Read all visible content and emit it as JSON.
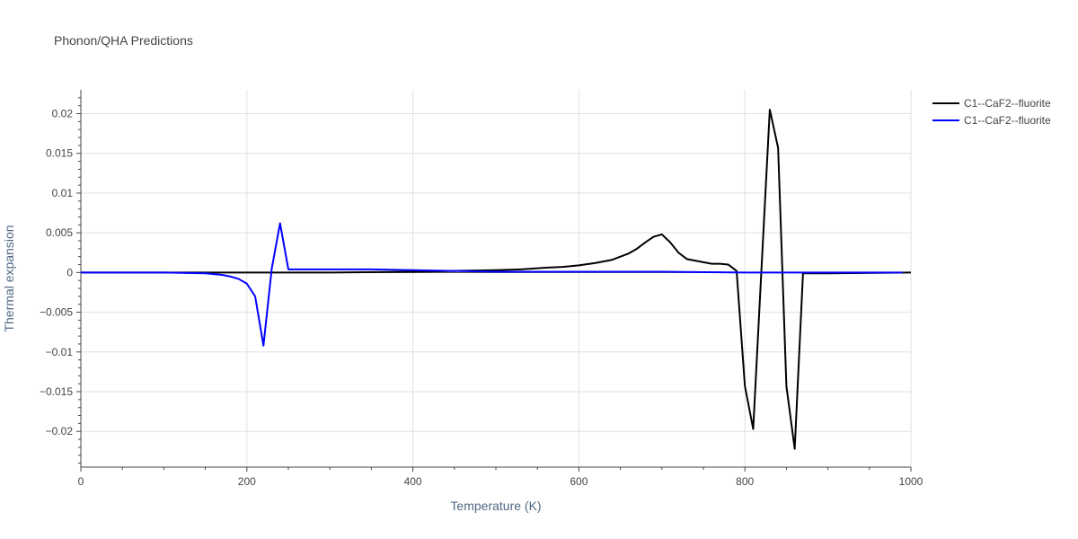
{
  "chart_data": {
    "type": "line",
    "title": "Phonon/QHA Predictions",
    "xlabel": "Temperature (K)",
    "ylabel": "Thermal expansion",
    "xlim": [
      0,
      1000
    ],
    "ylim": [
      -0.0245,
      0.023
    ],
    "x_ticks": [
      0,
      200,
      400,
      600,
      800,
      1000
    ],
    "x_tick_labels": [
      "0",
      "200",
      "400",
      "600",
      "800",
      "1000"
    ],
    "y_ticks": [
      0.02,
      0.015,
      0.01,
      0.005,
      0,
      -0.005,
      -0.01,
      -0.015,
      -0.02
    ],
    "y_tick_labels": [
      "0.02",
      "0.015",
      "0.01",
      "0.005",
      "0",
      "−0.005",
      "−0.01",
      "−0.015",
      "−0.02"
    ],
    "grid": true,
    "legend_position": "top-right",
    "series": [
      {
        "name": "C1--CaF2--fluorite",
        "color": "#000000",
        "x": [
          0,
          100,
          200,
          300,
          400,
          450,
          500,
          530,
          560,
          580,
          600,
          620,
          640,
          650,
          660,
          670,
          680,
          690,
          700,
          710,
          720,
          730,
          740,
          750,
          760,
          770,
          780,
          790,
          800,
          810,
          820,
          830,
          840,
          850,
          860,
          870,
          900,
          1000
        ],
        "y": [
          0,
          0,
          0,
          0,
          0.0001,
          0.0002,
          0.0003,
          0.0004,
          0.0006,
          0.0007,
          0.0009,
          0.0012,
          0.0016,
          0.002,
          0.0024,
          0.003,
          0.0038,
          0.0045,
          0.0048,
          0.0038,
          0.0025,
          0.0017,
          0.0015,
          0.0013,
          0.0011,
          0.0011,
          0.001,
          0.0002,
          -0.0143,
          -0.0197,
          0.0005,
          0.0205,
          0.0157,
          -0.0143,
          -0.0222,
          -0.0001,
          -0.0001,
          0
        ]
      },
      {
        "name": "C1--CaF2--fluorite",
        "color": "#0000ff",
        "x": [
          0,
          50,
          100,
          150,
          170,
          180,
          190,
          200,
          210,
          220,
          230,
          240,
          250,
          300,
          350,
          400,
          450,
          500,
          600,
          700,
          800,
          900,
          990
        ],
        "y": [
          0,
          0,
          0,
          -0.0001,
          -0.0003,
          -0.0005,
          -0.0008,
          -0.0014,
          -0.003,
          -0.0092,
          0.0005,
          0.0062,
          0.0004,
          0.0004,
          0.0004,
          0.0003,
          0.0002,
          0.0001,
          0.0001,
          0.0001,
          0,
          0,
          0
        ]
      }
    ]
  }
}
